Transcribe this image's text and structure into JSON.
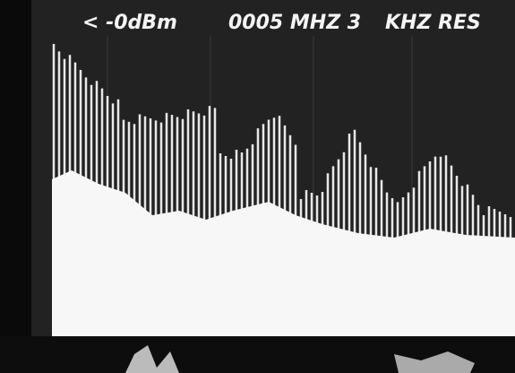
{
  "screen": {
    "readout": [
      "< -0dBm",
      "0005 MHZ 3",
      "KHZ RES"
    ]
  }
}
